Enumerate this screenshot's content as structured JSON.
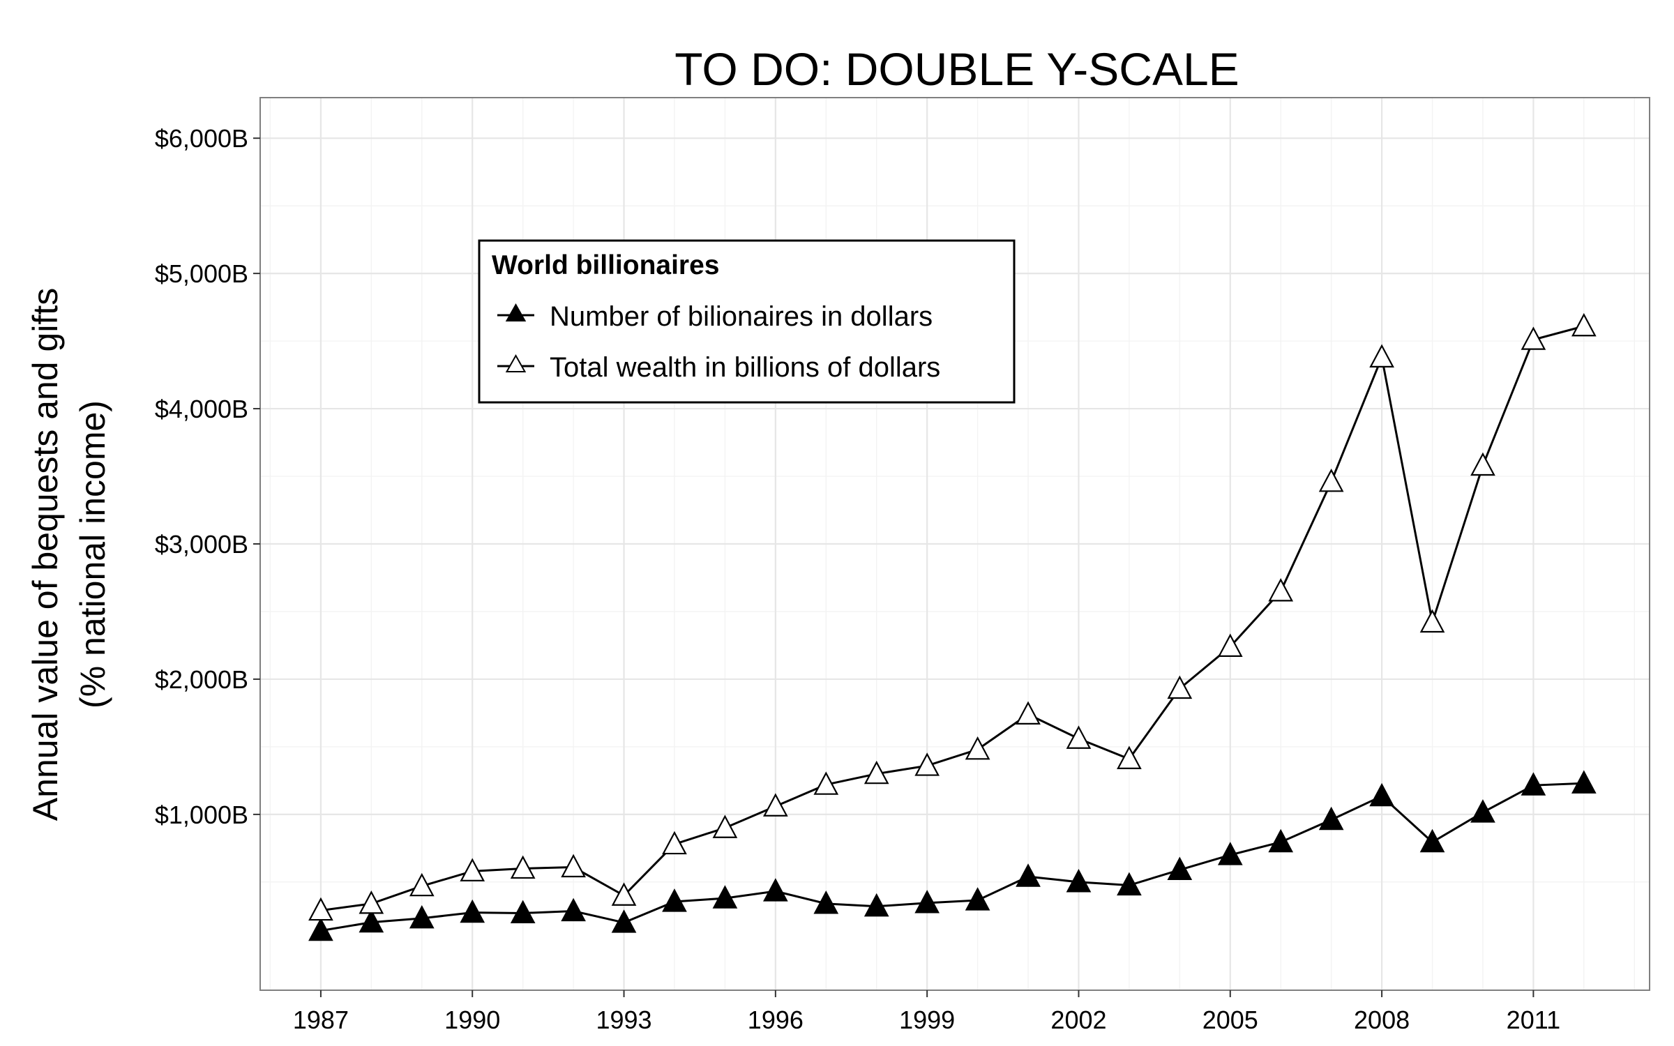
{
  "chart_data": {
    "type": "line",
    "title": "TO DO: DOUBLE Y-SCALE",
    "xlabel": "",
    "ylabel_lines": [
      "Annual value of bequests and gifts",
      "(% national income)"
    ],
    "x": [
      1987,
      1988,
      1989,
      1990,
      1991,
      1992,
      1993,
      1994,
      1995,
      1996,
      1997,
      1998,
      1999,
      2000,
      2001,
      2002,
      2003,
      2004,
      2005,
      2006,
      2007,
      2008,
      2009,
      2010,
      2011,
      2012
    ],
    "xlim": [
      1985.8,
      2013.3
    ],
    "ylim": [
      -300,
      6300
    ],
    "x_ticks": [
      1987,
      1990,
      1993,
      1996,
      1999,
      2002,
      2005,
      2008,
      2011
    ],
    "x_tick_labels": [
      "1987",
      "1990",
      "1993",
      "1996",
      "1999",
      "2002",
      "2005",
      "2008",
      "2011"
    ],
    "y_ticks": [
      1000,
      2000,
      3000,
      4000,
      5000,
      6000
    ],
    "y_tick_labels": [
      "$1,000B",
      "$2,000B",
      "$3,000B",
      "$4,000B",
      "$5,000B",
      "$6,000B"
    ],
    "grid": true,
    "legend": {
      "title": "World billionaires",
      "placement": "top-left"
    },
    "series": [
      {
        "name": "Number of bilionaires in dollars",
        "marker": "filled-triangle",
        "values": [
          140,
          202,
          232,
          274,
          270,
          285,
          200,
          355,
          380,
          432,
          340,
          320,
          345,
          365,
          540,
          500,
          476,
          590,
          700,
          795,
          960,
          1135,
          795,
          1015,
          1215,
          1230
        ]
      },
      {
        "name": "Total wealth in billions of dollars",
        "marker": "open-triangle",
        "values": [
          290,
          340,
          470,
          580,
          600,
          610,
          400,
          780,
          900,
          1060,
          1220,
          1300,
          1360,
          1480,
          1740,
          1560,
          1410,
          1930,
          2240,
          2650,
          3460,
          4380,
          2420,
          3580,
          4510,
          4610
        ]
      }
    ],
    "colors": {
      "line": "#000000",
      "grid": "#e6e6e6",
      "frame": "#7f7f7f",
      "background": "#ffffff"
    }
  }
}
